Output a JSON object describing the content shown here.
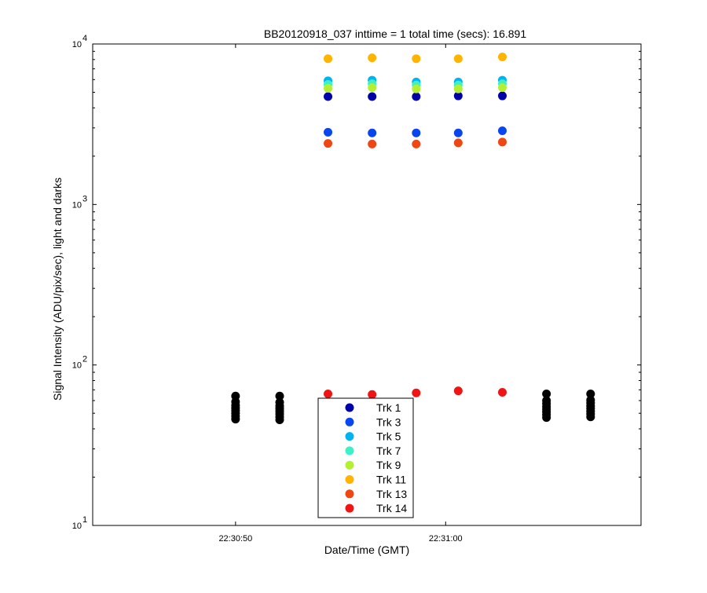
{
  "chart_data": {
    "type": "scatter",
    "title": "BB20120918_037 inttime = 1 total time (secs): 16.891",
    "xlabel": "Date/Time (GMT)",
    "ylabel": "Signal Intensity (ADU/pix/sec), light and darks",
    "y_scale": "log",
    "ylim": [
      10,
      10000
    ],
    "xlim": [
      "22:30:43.2",
      "22:31:09.3"
    ],
    "x_ticks": [
      "22:30:50",
      "22:31:00"
    ],
    "y_ticks": [
      {
        "base": "10",
        "exp": "1",
        "value": 10
      },
      {
        "base": "10",
        "exp": "2",
        "value": 100
      },
      {
        "base": "10",
        "exp": "3",
        "value": 1000
      },
      {
        "base": "10",
        "exp": "4",
        "value": 10000
      }
    ],
    "grid": false,
    "legend_position": "bottom-center",
    "series": [
      {
        "name": "Trk 1",
        "color": "#0000aa",
        "x": [
          "22:30:54.4",
          "22:30:56.5",
          "22:30:58.6",
          "22:31:00.6",
          "22:31:02.7"
        ],
        "y": [
          4700,
          4700,
          4700,
          4750,
          4750
        ]
      },
      {
        "name": "Trk 3",
        "color": "#0a46f0",
        "x": [
          "22:30:54.4",
          "22:30:56.5",
          "22:30:58.6",
          "22:31:00.6",
          "22:31:02.7"
        ],
        "y": [
          2820,
          2790,
          2790,
          2790,
          2880
        ]
      },
      {
        "name": "Trk 5",
        "color": "#00b4f0",
        "x": [
          "22:30:54.4",
          "22:30:56.5",
          "22:30:58.6",
          "22:31:00.6",
          "22:31:02.7"
        ],
        "y": [
          5900,
          5950,
          5800,
          5800,
          5950
        ]
      },
      {
        "name": "Trk 7",
        "color": "#3cf0c8",
        "x": [
          "22:30:54.4",
          "22:30:56.5",
          "22:30:58.6",
          "22:31:00.6",
          "22:31:02.7"
        ],
        "y": [
          5600,
          5650,
          5550,
          5550,
          5650
        ]
      },
      {
        "name": "Trk 9",
        "color": "#b4f032",
        "x": [
          "22:30:54.4",
          "22:30:56.5",
          "22:30:58.6",
          "22:31:00.6",
          "22:31:02.7"
        ],
        "y": [
          5300,
          5350,
          5250,
          5250,
          5350
        ]
      },
      {
        "name": "Trk 11",
        "color": "#ffb400",
        "x": [
          "22:30:54.4",
          "22:30:56.5",
          "22:30:58.6",
          "22:31:00.6",
          "22:31:02.7"
        ],
        "y": [
          8100,
          8200,
          8100,
          8100,
          8300
        ]
      },
      {
        "name": "Trk 13",
        "color": "#f04614",
        "x": [
          "22:30:54.4",
          "22:30:56.5",
          "22:30:58.6",
          "22:31:00.6",
          "22:31:02.7"
        ],
        "y": [
          2400,
          2380,
          2380,
          2420,
          2450
        ]
      },
      {
        "name": "Trk 14",
        "color": "#f01414",
        "x": [
          "22:30:54.4",
          "22:30:56.5",
          "22:30:58.6",
          "22:31:00.6",
          "22:31:02.7"
        ],
        "y": [
          66,
          65.5,
          67,
          69,
          67.5
        ]
      }
    ],
    "darks": {
      "color": "#000000",
      "columns": [
        {
          "x": "22:30:50.0",
          "y": [
            46,
            48,
            50,
            52,
            54,
            56,
            59,
            64
          ]
        },
        {
          "x": "22:30:52.1",
          "y": [
            45.5,
            47.5,
            49.5,
            51.5,
            53.5,
            55.5,
            58.5,
            64
          ]
        },
        {
          "x": "22:31:04.8",
          "y": [
            47,
            49,
            51,
            53,
            55,
            57.5,
            60,
            66
          ]
        },
        {
          "x": "22:31:06.9",
          "y": [
            47.5,
            49.5,
            51.5,
            53.5,
            55.5,
            58,
            60.5,
            66
          ]
        }
      ]
    }
  }
}
